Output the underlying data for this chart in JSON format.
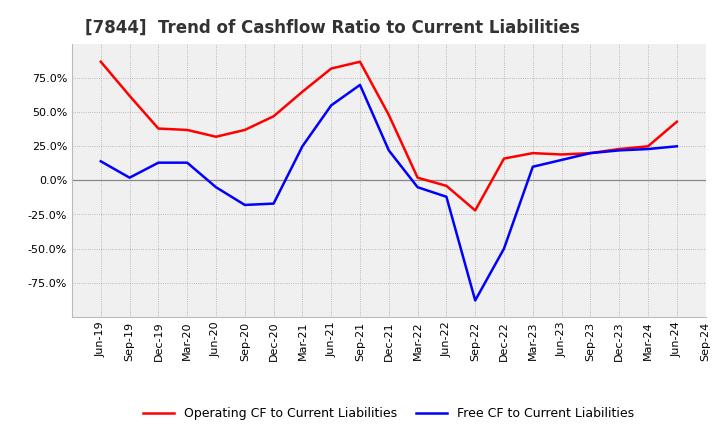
{
  "title": "[7844]  Trend of Cashflow Ratio to Current Liabilities",
  "x_labels": [
    "Jun-19",
    "Sep-19",
    "Dec-19",
    "Mar-20",
    "Jun-20",
    "Sep-20",
    "Dec-20",
    "Mar-21",
    "Jun-21",
    "Sep-21",
    "Dec-21",
    "Mar-22",
    "Jun-22",
    "Sep-22",
    "Dec-22",
    "Mar-23",
    "Jun-23",
    "Sep-23",
    "Dec-23",
    "Mar-24",
    "Jun-24",
    "Sep-24"
  ],
  "operating_cf": [
    0.87,
    0.62,
    0.38,
    0.37,
    0.32,
    0.37,
    0.47,
    0.65,
    0.82,
    0.87,
    0.48,
    0.02,
    -0.04,
    -0.22,
    0.16,
    0.2,
    0.19,
    0.2,
    0.23,
    0.25,
    0.43,
    null
  ],
  "free_cf": [
    0.14,
    0.02,
    0.13,
    0.13,
    -0.05,
    -0.18,
    -0.17,
    0.25,
    0.55,
    0.7,
    0.22,
    -0.05,
    -0.12,
    -0.88,
    -0.5,
    0.1,
    0.15,
    0.2,
    0.22,
    0.23,
    0.25,
    null
  ],
  "operating_color": "#ff0000",
  "free_color": "#0000ff",
  "ylim": [
    -1.0,
    1.0
  ],
  "yticks": [
    -0.75,
    -0.5,
    -0.25,
    0.0,
    0.25,
    0.5,
    0.75
  ],
  "background_color": "#ffffff",
  "plot_bg_color": "#f0f0f0",
  "grid_color": "#aaaaaa",
  "zero_line_color": "#888888",
  "legend_op": "Operating CF to Current Liabilities",
  "legend_free": "Free CF to Current Liabilities",
  "title_fontsize": 12,
  "tick_fontsize": 8
}
